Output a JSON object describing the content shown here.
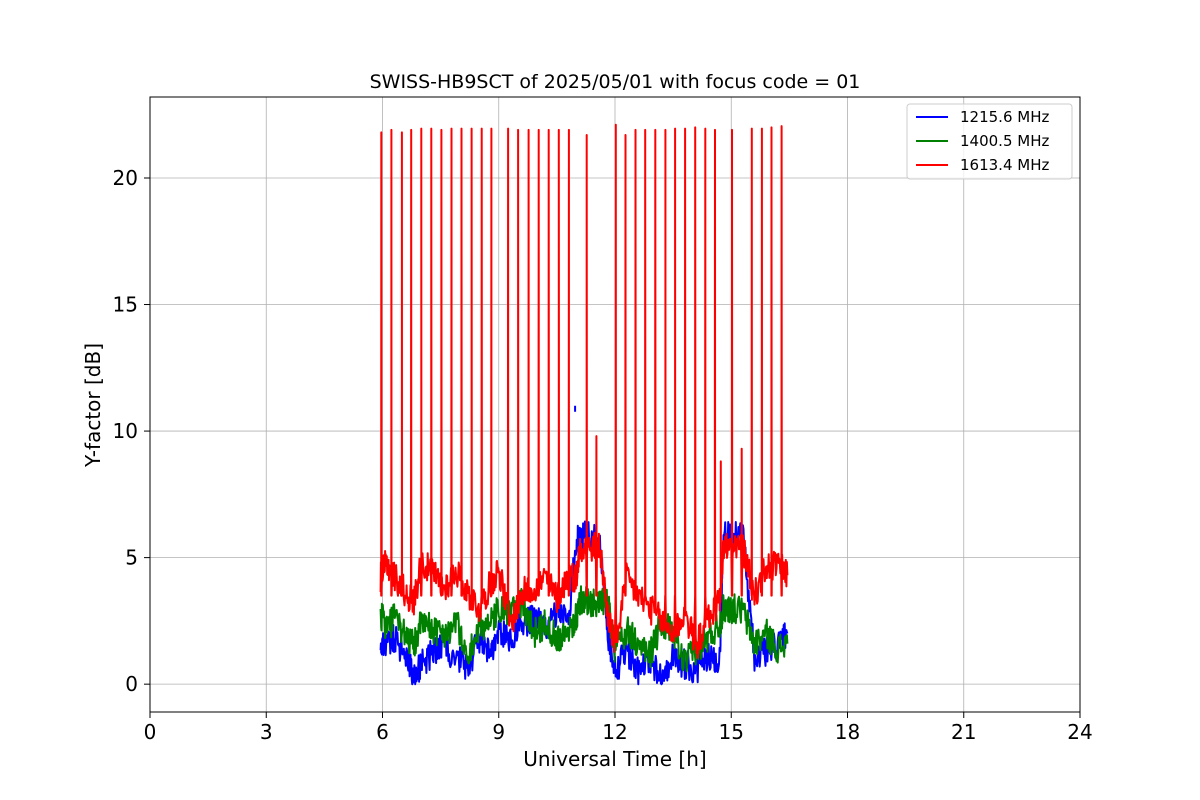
{
  "chart_data": {
    "type": "line",
    "title": "SWISS-HB9SCT of 2025/05/01 with focus code = 01",
    "xlabel": "Universal Time [h]",
    "ylabel": "Y-factor [dB]",
    "xlim": [
      0,
      24
    ],
    "ylim": [
      -1.1,
      23.2
    ],
    "xticks": [
      0,
      3,
      6,
      9,
      12,
      15,
      18,
      21,
      24
    ],
    "yticks": [
      0,
      5,
      10,
      15,
      20
    ],
    "xtick_labels": [
      "0",
      "3",
      "6",
      "9",
      "12",
      "15",
      "18",
      "21",
      "24"
    ],
    "ytick_labels": [
      "0",
      "5",
      "10",
      "15",
      "20"
    ],
    "grid": true,
    "legend_position": "top-right",
    "series": [
      {
        "name": "1215.6 MHz",
        "color": "#0000ff",
        "x": [
          5.95,
          6.1,
          6.3,
          6.6,
          6.8,
          7.0,
          7.3,
          7.6,
          7.9,
          8.2,
          8.5,
          8.8,
          9.0,
          9.3,
          9.6,
          9.9,
          10.2,
          10.5,
          10.8,
          11.0,
          11.1,
          11.3,
          11.6,
          11.8,
          12.0,
          12.3,
          12.6,
          12.9,
          13.2,
          13.5,
          13.8,
          14.1,
          14.4,
          14.7,
          14.8,
          15.0,
          15.3,
          15.6,
          15.9,
          16.2,
          16.45
        ],
        "y": [
          1.8,
          1.6,
          1.8,
          1.2,
          0.2,
          0.8,
          1.2,
          1.5,
          1.0,
          0.7,
          1.8,
          1.3,
          2.0,
          1.8,
          2.4,
          2.6,
          2.3,
          2.8,
          2.5,
          5.8,
          5.8,
          5.9,
          5.8,
          2.2,
          0.6,
          1.2,
          0.5,
          1.0,
          0.3,
          1.1,
          0.8,
          0.5,
          1.2,
          0.9,
          5.9,
          5.9,
          5.9,
          1.1,
          1.3,
          1.5,
          2.0
        ]
      },
      {
        "name": "1400.5 MHz",
        "color": "#008000",
        "x": [
          5.95,
          6.1,
          6.3,
          6.6,
          6.8,
          7.0,
          7.3,
          7.6,
          7.9,
          8.2,
          8.5,
          8.8,
          9.0,
          9.3,
          9.6,
          9.9,
          10.2,
          10.5,
          10.8,
          11.0,
          11.1,
          11.3,
          11.6,
          11.8,
          12.0,
          12.3,
          12.6,
          12.9,
          13.2,
          13.5,
          13.8,
          14.1,
          14.4,
          14.7,
          14.8,
          15.0,
          15.3,
          15.6,
          15.9,
          16.2,
          16.45
        ],
        "y": [
          2.8,
          2.2,
          2.6,
          2.0,
          1.5,
          2.4,
          2.2,
          2.0,
          2.5,
          1.0,
          2.3,
          2.4,
          3.0,
          2.7,
          3.3,
          2.0,
          2.4,
          1.8,
          2.2,
          2.6,
          3.3,
          3.3,
          3.2,
          3.3,
          1.3,
          2.2,
          1.5,
          1.2,
          2.4,
          2.0,
          0.8,
          1.4,
          1.8,
          2.4,
          3.0,
          3.0,
          2.9,
          1.6,
          2.0,
          1.4,
          1.6
        ]
      },
      {
        "name": "1613.4 MHz",
        "color": "#ff0000",
        "x": [
          5.95,
          6.1,
          6.3,
          6.6,
          6.8,
          7.0,
          7.3,
          7.6,
          7.9,
          8.2,
          8.5,
          8.8,
          9.0,
          9.3,
          9.6,
          9.9,
          10.2,
          10.5,
          10.8,
          11.0,
          11.1,
          11.3,
          11.6,
          11.8,
          12.0,
          12.3,
          12.6,
          12.9,
          13.2,
          13.5,
          13.8,
          14.1,
          14.4,
          14.7,
          14.8,
          15.0,
          15.3,
          15.6,
          15.9,
          16.2,
          16.45
        ],
        "y": [
          4.2,
          4.8,
          4.3,
          3.6,
          3.2,
          4.8,
          4.4,
          3.8,
          4.5,
          3.6,
          3.0,
          4.0,
          4.6,
          2.3,
          3.6,
          3.8,
          4.2,
          3.4,
          4.3,
          4.2,
          5.5,
          5.3,
          5.5,
          2.9,
          1.5,
          4.2,
          3.5,
          3.0,
          2.5,
          2.0,
          2.8,
          1.5,
          2.6,
          3.3,
          5.4,
          5.5,
          5.4,
          3.5,
          4.6,
          4.7,
          4.3
        ]
      }
    ],
    "scan_spikes": {
      "times": [
        5.97,
        6.23,
        6.5,
        6.74,
        7.0,
        7.26,
        7.52,
        7.78,
        8.04,
        8.3,
        8.56,
        8.81,
        9.24,
        9.5,
        9.77,
        10.03,
        10.29,
        10.55,
        10.81,
        11.27,
        11.52,
        12.02,
        12.27,
        12.53,
        12.78,
        13.04,
        13.3,
        13.55,
        13.81,
        14.07,
        14.33,
        14.58,
        14.73,
        15.02,
        15.27,
        15.53,
        15.79,
        16.04,
        16.3
      ],
      "peaks": [
        21.8,
        21.9,
        21.8,
        21.9,
        21.95,
        21.95,
        21.9,
        21.95,
        21.95,
        21.95,
        21.95,
        21.95,
        21.95,
        21.9,
        21.9,
        21.9,
        21.9,
        21.9,
        21.9,
        21.7,
        9.8,
        22.1,
        21.7,
        21.9,
        21.9,
        21.9,
        21.9,
        21.95,
        21.95,
        22.0,
        21.95,
        21.9,
        8.8,
        21.9,
        9.3,
        21.95,
        21.95,
        22.0,
        22.05
      ]
    },
    "annotations": [
      {
        "x": 10.97,
        "y": 11.0,
        "color": "#0000ff"
      }
    ]
  }
}
